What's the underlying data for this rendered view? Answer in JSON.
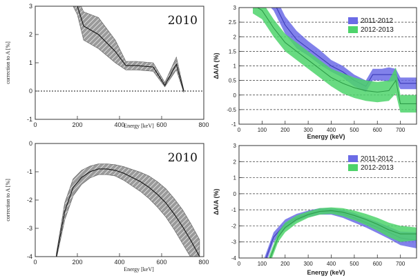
{
  "colors": {
    "series_2011_2012": "#6b6be6",
    "series_2012_2013": "#4ed36b",
    "band_2010": "#999999",
    "line": "#222222"
  },
  "chart_data": [
    {
      "type": "area",
      "panel": "top-left",
      "annotation": "2010",
      "xlabel": "Energy [keV]",
      "ylabel": "correction to A [%]",
      "xlim": [
        0,
        800
      ],
      "ylim": [
        -1,
        3
      ],
      "xticks": [
        "0",
        "200",
        "400",
        "600",
        "800"
      ],
      "yticks": [
        "-1",
        "0",
        "1",
        "2",
        "3"
      ],
      "reference_line": 0,
      "series": [
        {
          "x": [
            160,
            200,
            230,
            300,
            380,
            430,
            480,
            560,
            615,
            670,
            705
          ],
          "y": [
            3.6,
            3.0,
            2.3,
            2.0,
            1.4,
            0.9,
            0.9,
            0.85,
            0.2,
            0.95,
            0.0
          ],
          "lower": [
            3.3,
            2.7,
            1.8,
            1.5,
            1.0,
            0.75,
            0.75,
            0.7,
            0.15,
            0.75,
            -0.05
          ],
          "upper": [
            3.9,
            3.3,
            2.8,
            2.6,
            1.8,
            1.05,
            1.05,
            1.0,
            0.3,
            1.2,
            0.05
          ]
        }
      ]
    },
    {
      "type": "area",
      "panel": "top-right",
      "xlabel": "Energy (keV)",
      "ylabel": "ΔA/A (%)",
      "xlim": [
        0,
        770
      ],
      "ylim": [
        -1,
        3
      ],
      "xticks": [
        "0",
        "100",
        "200",
        "300",
        "400",
        "500",
        "600",
        "700"
      ],
      "yticks": [
        "-1",
        "-0.5",
        "0",
        "0.5",
        "1",
        "1.5",
        "2",
        "2.5",
        "3"
      ],
      "grid": true,
      "legend": "top-right",
      "series": [
        {
          "name": "2011-2012",
          "x": [
            100,
            150,
            200,
            250,
            300,
            350,
            400,
            450,
            500,
            550,
            580,
            620,
            650,
            680,
            700,
            770
          ],
          "y": [
            3.6,
            3.2,
            2.4,
            1.9,
            1.6,
            1.3,
            1.0,
            0.8,
            0.5,
            0.3,
            0.7,
            0.7,
            0.7,
            0.7,
            0.4,
            0.4
          ],
          "lower": [
            3.3,
            2.9,
            2.1,
            1.6,
            1.35,
            1.05,
            0.8,
            0.6,
            0.3,
            0.1,
            0.5,
            0.5,
            0.45,
            0.5,
            0.2,
            0.2
          ],
          "upper": [
            3.9,
            3.5,
            2.7,
            2.2,
            1.85,
            1.55,
            1.2,
            1.0,
            0.7,
            0.5,
            0.9,
            0.9,
            0.95,
            0.9,
            0.6,
            0.6
          ]
        },
        {
          "name": "2012-2013",
          "x": [
            60,
            100,
            150,
            200,
            250,
            300,
            350,
            400,
            450,
            500,
            550,
            600,
            650,
            680,
            700,
            770
          ],
          "y": [
            3.1,
            2.9,
            2.3,
            1.8,
            1.5,
            1.2,
            0.9,
            0.6,
            0.4,
            0.25,
            0.15,
            0.1,
            0.15,
            0.5,
            -0.3,
            -0.3
          ],
          "lower": [
            2.8,
            2.6,
            2.0,
            1.5,
            1.2,
            0.9,
            0.6,
            0.3,
            0.05,
            -0.1,
            -0.2,
            -0.25,
            -0.2,
            0.05,
            -0.6,
            -0.6
          ],
          "upper": [
            3.4,
            3.2,
            2.6,
            2.1,
            1.8,
            1.5,
            1.2,
            0.9,
            0.75,
            0.6,
            0.5,
            0.45,
            0.5,
            0.95,
            0.0,
            0.0
          ]
        }
      ],
      "legend_labels": [
        "2011-2012",
        "2012-2013"
      ]
    },
    {
      "type": "area",
      "panel": "bottom-left",
      "annotation": "2010",
      "xlabel": "Energy [keV]",
      "ylabel": "correction to A [%]",
      "xlim": [
        0,
        800
      ],
      "ylim": [
        -4,
        0
      ],
      "xticks": [
        "0",
        "200",
        "400",
        "600",
        "800"
      ],
      "yticks": [
        "-4",
        "-3",
        "-2",
        "-1",
        "0"
      ],
      "series": [
        {
          "x": [
            100,
            140,
            180,
            220,
            260,
            300,
            340,
            380,
            420,
            460,
            500,
            540,
            580,
            620,
            660,
            700,
            740,
            780
          ],
          "y": [
            -4.0,
            -2.4,
            -1.55,
            -1.2,
            -1.0,
            -0.9,
            -0.9,
            -0.95,
            -1.05,
            -1.2,
            -1.35,
            -1.55,
            -1.8,
            -2.1,
            -2.5,
            -2.95,
            -3.45,
            -4.0
          ],
          "lower": [
            -4.1,
            -2.7,
            -1.85,
            -1.45,
            -1.22,
            -1.1,
            -1.1,
            -1.15,
            -1.3,
            -1.5,
            -1.7,
            -1.95,
            -2.25,
            -2.6,
            -3.05,
            -3.55,
            -4.05,
            -4.5
          ],
          "upper": [
            -3.9,
            -2.1,
            -1.25,
            -0.95,
            -0.8,
            -0.72,
            -0.72,
            -0.75,
            -0.82,
            -0.92,
            -1.02,
            -1.15,
            -1.35,
            -1.6,
            -1.95,
            -2.35,
            -2.85,
            -3.4
          ]
        }
      ]
    },
    {
      "type": "area",
      "panel": "bottom-right",
      "xlabel": "Energy (keV)",
      "ylabel": "ΔA/A (%)",
      "xlim": [
        0,
        770
      ],
      "ylim": [
        -4,
        3
      ],
      "xticks": [
        "0",
        "100",
        "200",
        "300",
        "400",
        "500",
        "600",
        "700"
      ],
      "yticks": [
        "-4",
        "-3",
        "-2",
        "-1",
        "0",
        "1",
        "2",
        "3"
      ],
      "grid": true,
      "legend": "top-right",
      "series": [
        {
          "name": "2011-2012",
          "x": [
            110,
            150,
            200,
            250,
            300,
            350,
            400,
            450,
            500,
            550,
            600,
            650,
            700,
            770
          ],
          "y": [
            -4.3,
            -2.7,
            -1.9,
            -1.5,
            -1.25,
            -1.1,
            -1.1,
            -1.25,
            -1.5,
            -1.8,
            -2.1,
            -2.4,
            -2.75,
            -2.9
          ],
          "lower": [
            -4.6,
            -3.0,
            -2.2,
            -1.7,
            -1.45,
            -1.3,
            -1.3,
            -1.5,
            -1.8,
            -2.1,
            -2.45,
            -2.8,
            -3.2,
            -3.4
          ],
          "upper": [
            -4.0,
            -2.4,
            -1.6,
            -1.25,
            -1.05,
            -0.9,
            -0.9,
            -1.0,
            -1.2,
            -1.5,
            -1.75,
            -2.05,
            -2.35,
            -2.4
          ]
        },
        {
          "name": "2012-2013",
          "x": [
            130,
            170,
            200,
            250,
            300,
            350,
            400,
            450,
            500,
            550,
            600,
            650,
            700,
            770
          ],
          "y": [
            -4.2,
            -2.7,
            -2.1,
            -1.6,
            -1.3,
            -1.1,
            -1.05,
            -1.15,
            -1.35,
            -1.6,
            -1.9,
            -2.25,
            -2.5,
            -2.5
          ],
          "lower": [
            -4.5,
            -3.0,
            -2.4,
            -1.85,
            -1.5,
            -1.3,
            -1.25,
            -1.4,
            -1.65,
            -1.95,
            -2.3,
            -2.7,
            -3.0,
            -2.9
          ],
          "upper": [
            -3.9,
            -2.4,
            -1.8,
            -1.35,
            -1.1,
            -0.9,
            -0.85,
            -0.9,
            -1.05,
            -1.25,
            -1.5,
            -1.8,
            -2.0,
            -2.1
          ]
        }
      ],
      "legend_labels": [
        "2011-2012",
        "2012-2013"
      ]
    }
  ]
}
